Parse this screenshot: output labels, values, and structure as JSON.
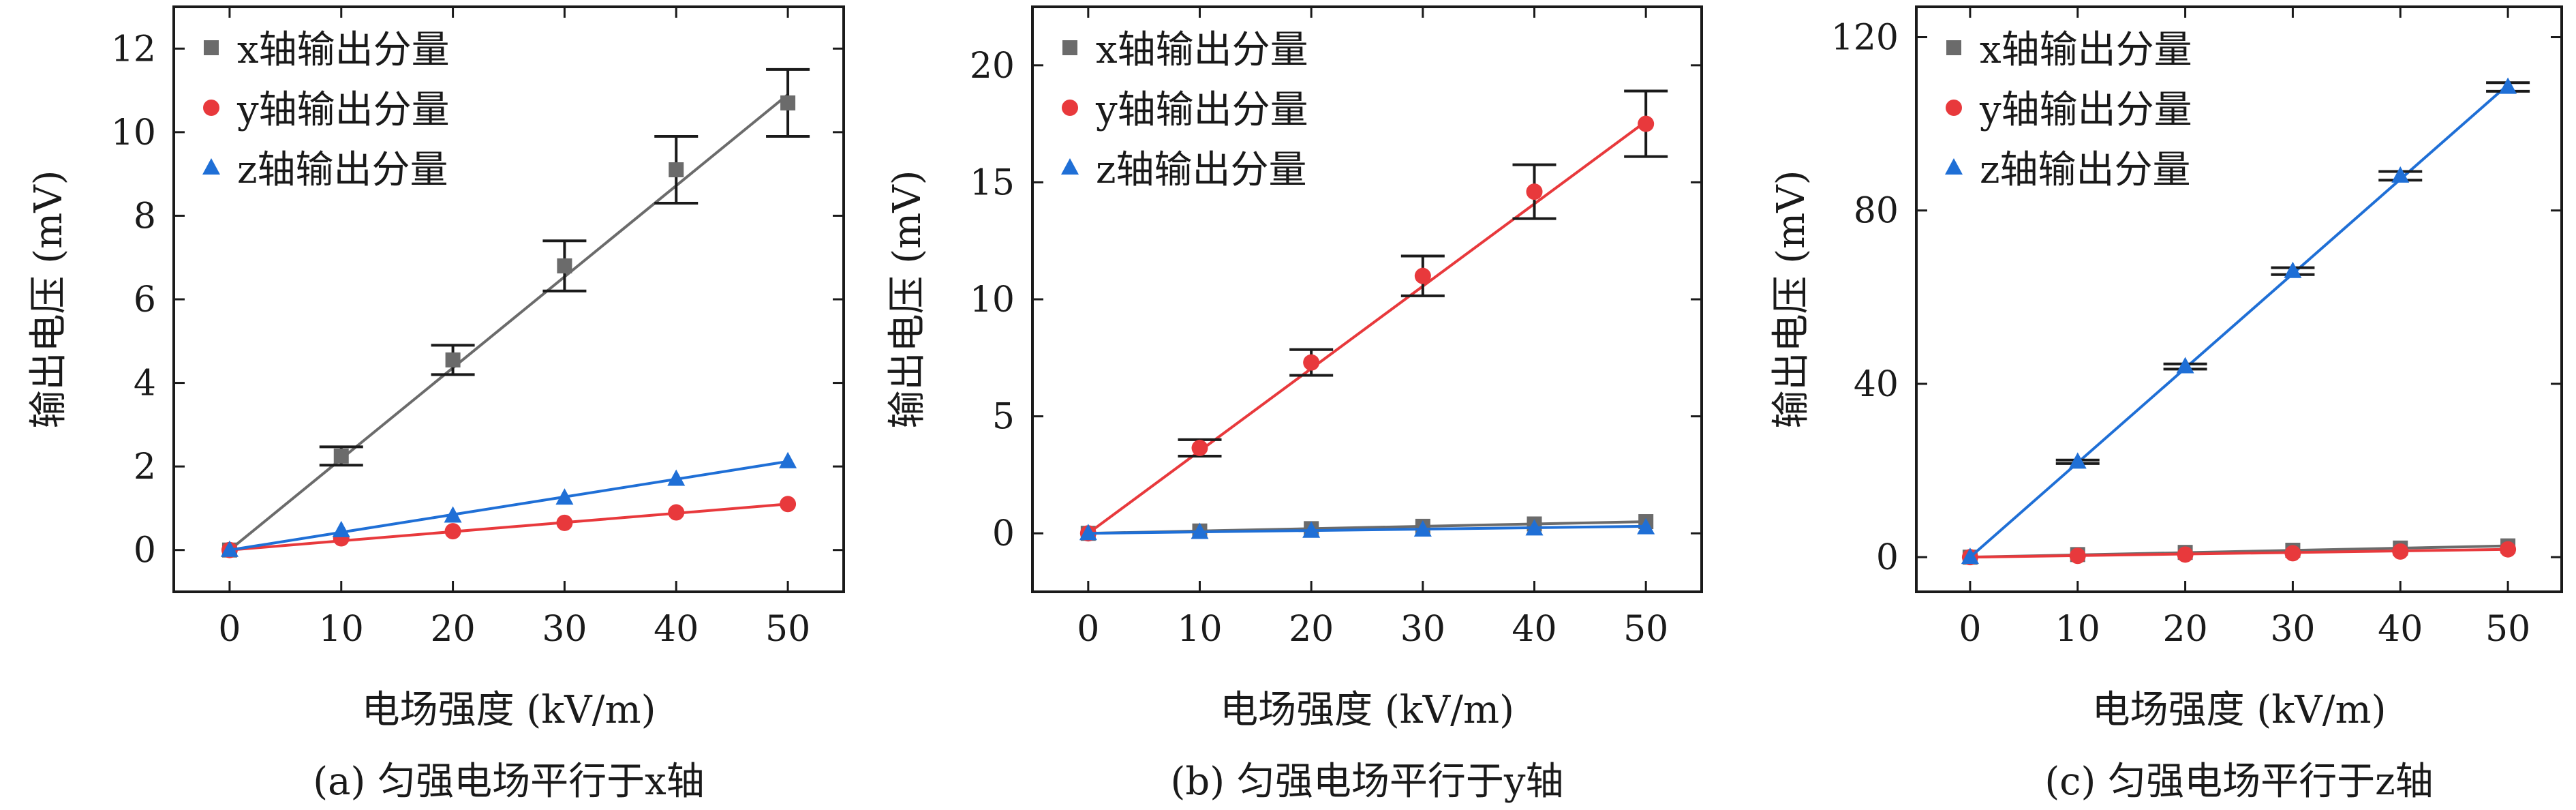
{
  "colors": {
    "x": "#6b6b6b",
    "y": "#e8393c",
    "z": "#1f6fd6",
    "axis": "#1a1a1a"
  },
  "markers": {
    "x": "square",
    "y": "circle",
    "z": "triangle"
  },
  "chart_data": [
    {
      "type": "scatter",
      "caption": "(a) 匀强电场平行于x轴",
      "xlabel": "电场强度 (kV/m)",
      "ylabel": "输出电压 (mV)",
      "xlim": [
        -5,
        55
      ],
      "ylim": [
        -1,
        13
      ],
      "xticks": [
        0,
        10,
        20,
        30,
        40,
        50
      ],
      "yticks": [
        0,
        2,
        4,
        6,
        8,
        10,
        12
      ],
      "legend_position": "top-left",
      "grid": false,
      "x": [
        0,
        10,
        20,
        30,
        40,
        50
      ],
      "series": [
        {
          "name": "x轴输出分量",
          "key": "x",
          "values": [
            0,
            2.25,
            4.55,
            6.8,
            9.1,
            10.7
          ],
          "errors": [
            0,
            0.22,
            0.35,
            0.6,
            0.8,
            0.8
          ],
          "fit": [
            0,
            10.9
          ]
        },
        {
          "name": "y轴输出分量",
          "key": "y",
          "values": [
            0,
            0.28,
            0.45,
            0.65,
            0.9,
            1.1
          ],
          "errors": [
            0,
            0,
            0,
            0,
            0,
            0
          ],
          "fit": [
            0,
            1.1
          ]
        },
        {
          "name": "z轴输出分量",
          "key": "z",
          "values": [
            0,
            0.47,
            0.82,
            1.25,
            1.7,
            2.12
          ],
          "errors": [
            0,
            0,
            0,
            0,
            0,
            0
          ],
          "fit": [
            0,
            2.12
          ]
        }
      ]
    },
    {
      "type": "scatter",
      "caption": "(b) 匀强电场平行于y轴",
      "xlabel": "电场强度 (kV/m)",
      "ylabel": "输出电压 (mV)",
      "xlim": [
        -5,
        55
      ],
      "ylim": [
        -2.5,
        22.5
      ],
      "xticks": [
        0,
        10,
        20,
        30,
        40,
        50
      ],
      "yticks": [
        0,
        5,
        10,
        15,
        20
      ],
      "legend_position": "top-left",
      "grid": false,
      "x": [
        0,
        10,
        20,
        30,
        40,
        50
      ],
      "series": [
        {
          "name": "x轴输出分量",
          "key": "x",
          "values": [
            0,
            0.1,
            0.2,
            0.3,
            0.4,
            0.5
          ],
          "errors": [
            0,
            0,
            0,
            0,
            0,
            0
          ],
          "fit": [
            0,
            0.5
          ]
        },
        {
          "name": "y轴输出分量",
          "key": "y",
          "values": [
            0,
            3.65,
            7.3,
            11.0,
            14.6,
            17.5
          ],
          "errors": [
            0,
            0.35,
            0.55,
            0.85,
            1.15,
            1.4
          ],
          "fit": [
            0,
            17.6
          ]
        },
        {
          "name": "z轴输出分量",
          "key": "z",
          "values": [
            0,
            0.05,
            0.1,
            0.15,
            0.2,
            0.25
          ],
          "errors": [
            0,
            0,
            0,
            0,
            0,
            0
          ],
          "fit": [
            0,
            0.3
          ]
        }
      ]
    },
    {
      "type": "scatter",
      "caption": "(c) 匀强电场平行于z轴",
      "xlabel": "电场强度 (kV/m)",
      "ylabel": "输出电压 (mV)",
      "xlim": [
        -5,
        55
      ],
      "ylim": [
        -8,
        127
      ],
      "xticks": [
        0,
        10,
        20,
        30,
        40,
        50
      ],
      "yticks": [
        0,
        40,
        80,
        120
      ],
      "legend_position": "top-left",
      "grid": false,
      "x": [
        0,
        10,
        20,
        30,
        40,
        50
      ],
      "series": [
        {
          "name": "x轴输出分量",
          "key": "x",
          "values": [
            0,
            0.6,
            1.1,
            1.6,
            2.1,
            2.6
          ],
          "errors": [
            0,
            0,
            0,
            0,
            0,
            0
          ],
          "fit": [
            0,
            2.6
          ]
        },
        {
          "name": "y轴输出分量",
          "key": "y",
          "values": [
            0,
            0.3,
            0.6,
            0.9,
            1.3,
            1.8
          ],
          "errors": [
            0,
            0,
            0,
            0,
            0,
            0
          ],
          "fit": [
            0,
            1.8
          ]
        },
        {
          "name": "z轴输出分量",
          "key": "z",
          "values": [
            0,
            22.0,
            44.0,
            66.0,
            88.0,
            108.5
          ],
          "errors": [
            0,
            0.4,
            0.6,
            0.8,
            1.0,
            1.0
          ],
          "fit": [
            0,
            109
          ]
        }
      ]
    }
  ]
}
